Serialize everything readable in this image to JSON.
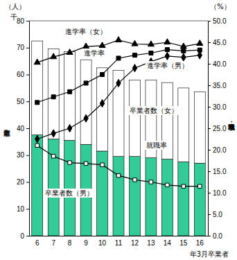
{
  "chart_data": {
    "type": "bar",
    "stacked": true,
    "categories": [
      "6",
      "7",
      "8",
      "9",
      "10",
      "11",
      "12",
      "13",
      "14",
      "15",
      "16"
    ],
    "x_label": "年3月卒業者",
    "y_label": "卒業者数",
    "y_unit_label": "（人）",
    "y_scale_label": "千",
    "y2_label": "進学率・就職率",
    "y2_unit_label": "（%）",
    "ylim": [
      0,
      80
    ],
    "yticks": [
      0,
      10,
      20,
      30,
      40,
      50,
      60,
      70,
      80
    ],
    "y2lim": [
      0,
      50
    ],
    "y2ticks": [
      {
        "value": 0,
        "label": "0.0"
      },
      {
        "value": 5,
        "label": "5.0"
      },
      {
        "value": 10,
        "label": "10.0"
      },
      {
        "value": 15,
        "label": "15.0"
      },
      {
        "value": 20,
        "label": "20.0"
      },
      {
        "value": 25,
        "label": "25.0"
      },
      {
        "value": 30,
        "label": "30.0"
      },
      {
        "value": 35,
        "label": "35.0"
      },
      {
        "value": 40,
        "label": "40.0"
      },
      {
        "value": 45,
        "label": "45.0"
      },
      {
        "value": 50,
        "label": "50.0"
      }
    ],
    "series": [
      {
        "name": "卒業者数（男）",
        "type": "bar",
        "color": "#33cc99",
        "values": [
          37.5,
          36.0,
          35.5,
          34.0,
          31.5,
          29.5,
          29.5,
          29.0,
          28.5,
          27.5,
          27.0
        ]
      },
      {
        "name": "卒業者数（女）",
        "type": "bar",
        "color": "#ffffff",
        "values": [
          35.0,
          33.5,
          33.0,
          31.5,
          31.0,
          32.0,
          28.5,
          29.0,
          28.5,
          27.5,
          26.5
        ]
      },
      {
        "name": "進学率（女）",
        "type": "line",
        "axis": "y2",
        "color": "#000000",
        "marker": "triangle",
        "values": [
          40.3,
          41.6,
          42.6,
          44.0,
          44.2,
          45.5,
          44.6,
          44.5,
          45.0,
          44.0,
          44.7
        ]
      },
      {
        "name": "進学率",
        "type": "line",
        "axis": "y2",
        "color": "#000000",
        "marker": "square",
        "values": [
          31.0,
          32.3,
          33.5,
          35.5,
          37.5,
          41.3,
          42.0,
          42.5,
          43.3,
          43.0,
          43.2
        ]
      },
      {
        "name": "進学率（男）",
        "type": "line",
        "axis": "y2",
        "color": "#000000",
        "marker": "diamond",
        "values": [
          22.5,
          23.8,
          25.0,
          27.3,
          30.8,
          35.5,
          39.0,
          40.5,
          41.8,
          41.5,
          42.0
        ]
      },
      {
        "name": "就職率",
        "type": "line",
        "axis": "y2",
        "color": "#000000",
        "marker": "square-open",
        "values": [
          21.0,
          18.5,
          17.0,
          16.8,
          16.5,
          14.0,
          13.0,
          12.5,
          11.8,
          11.5,
          11.5
        ]
      }
    ]
  }
}
